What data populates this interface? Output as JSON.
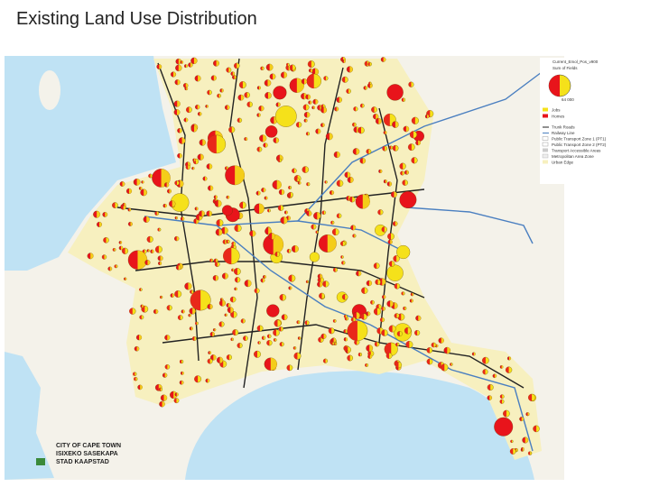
{
  "header": {
    "title": "Existing Land Use Distribution"
  },
  "legend": {
    "title": "Current_Emol_Pos_v900",
    "subtitle": "Sum of Fields",
    "size_label": "64 000",
    "items": [
      "Jobs",
      "Homes",
      "Trunk Roads",
      "Railway Line",
      "Public Transport Zone 1 (PT1)",
      "Public Transport Zone 2 (PT2)",
      "Transport Accessible Areas",
      "Metropolitan Area Zone",
      "Urban Edge"
    ]
  },
  "logo": {
    "lines": [
      "CITY OF CAPE TOWN",
      "ISIXEKO SASEKAPA",
      "STAD KAAPSTAD"
    ]
  }
}
